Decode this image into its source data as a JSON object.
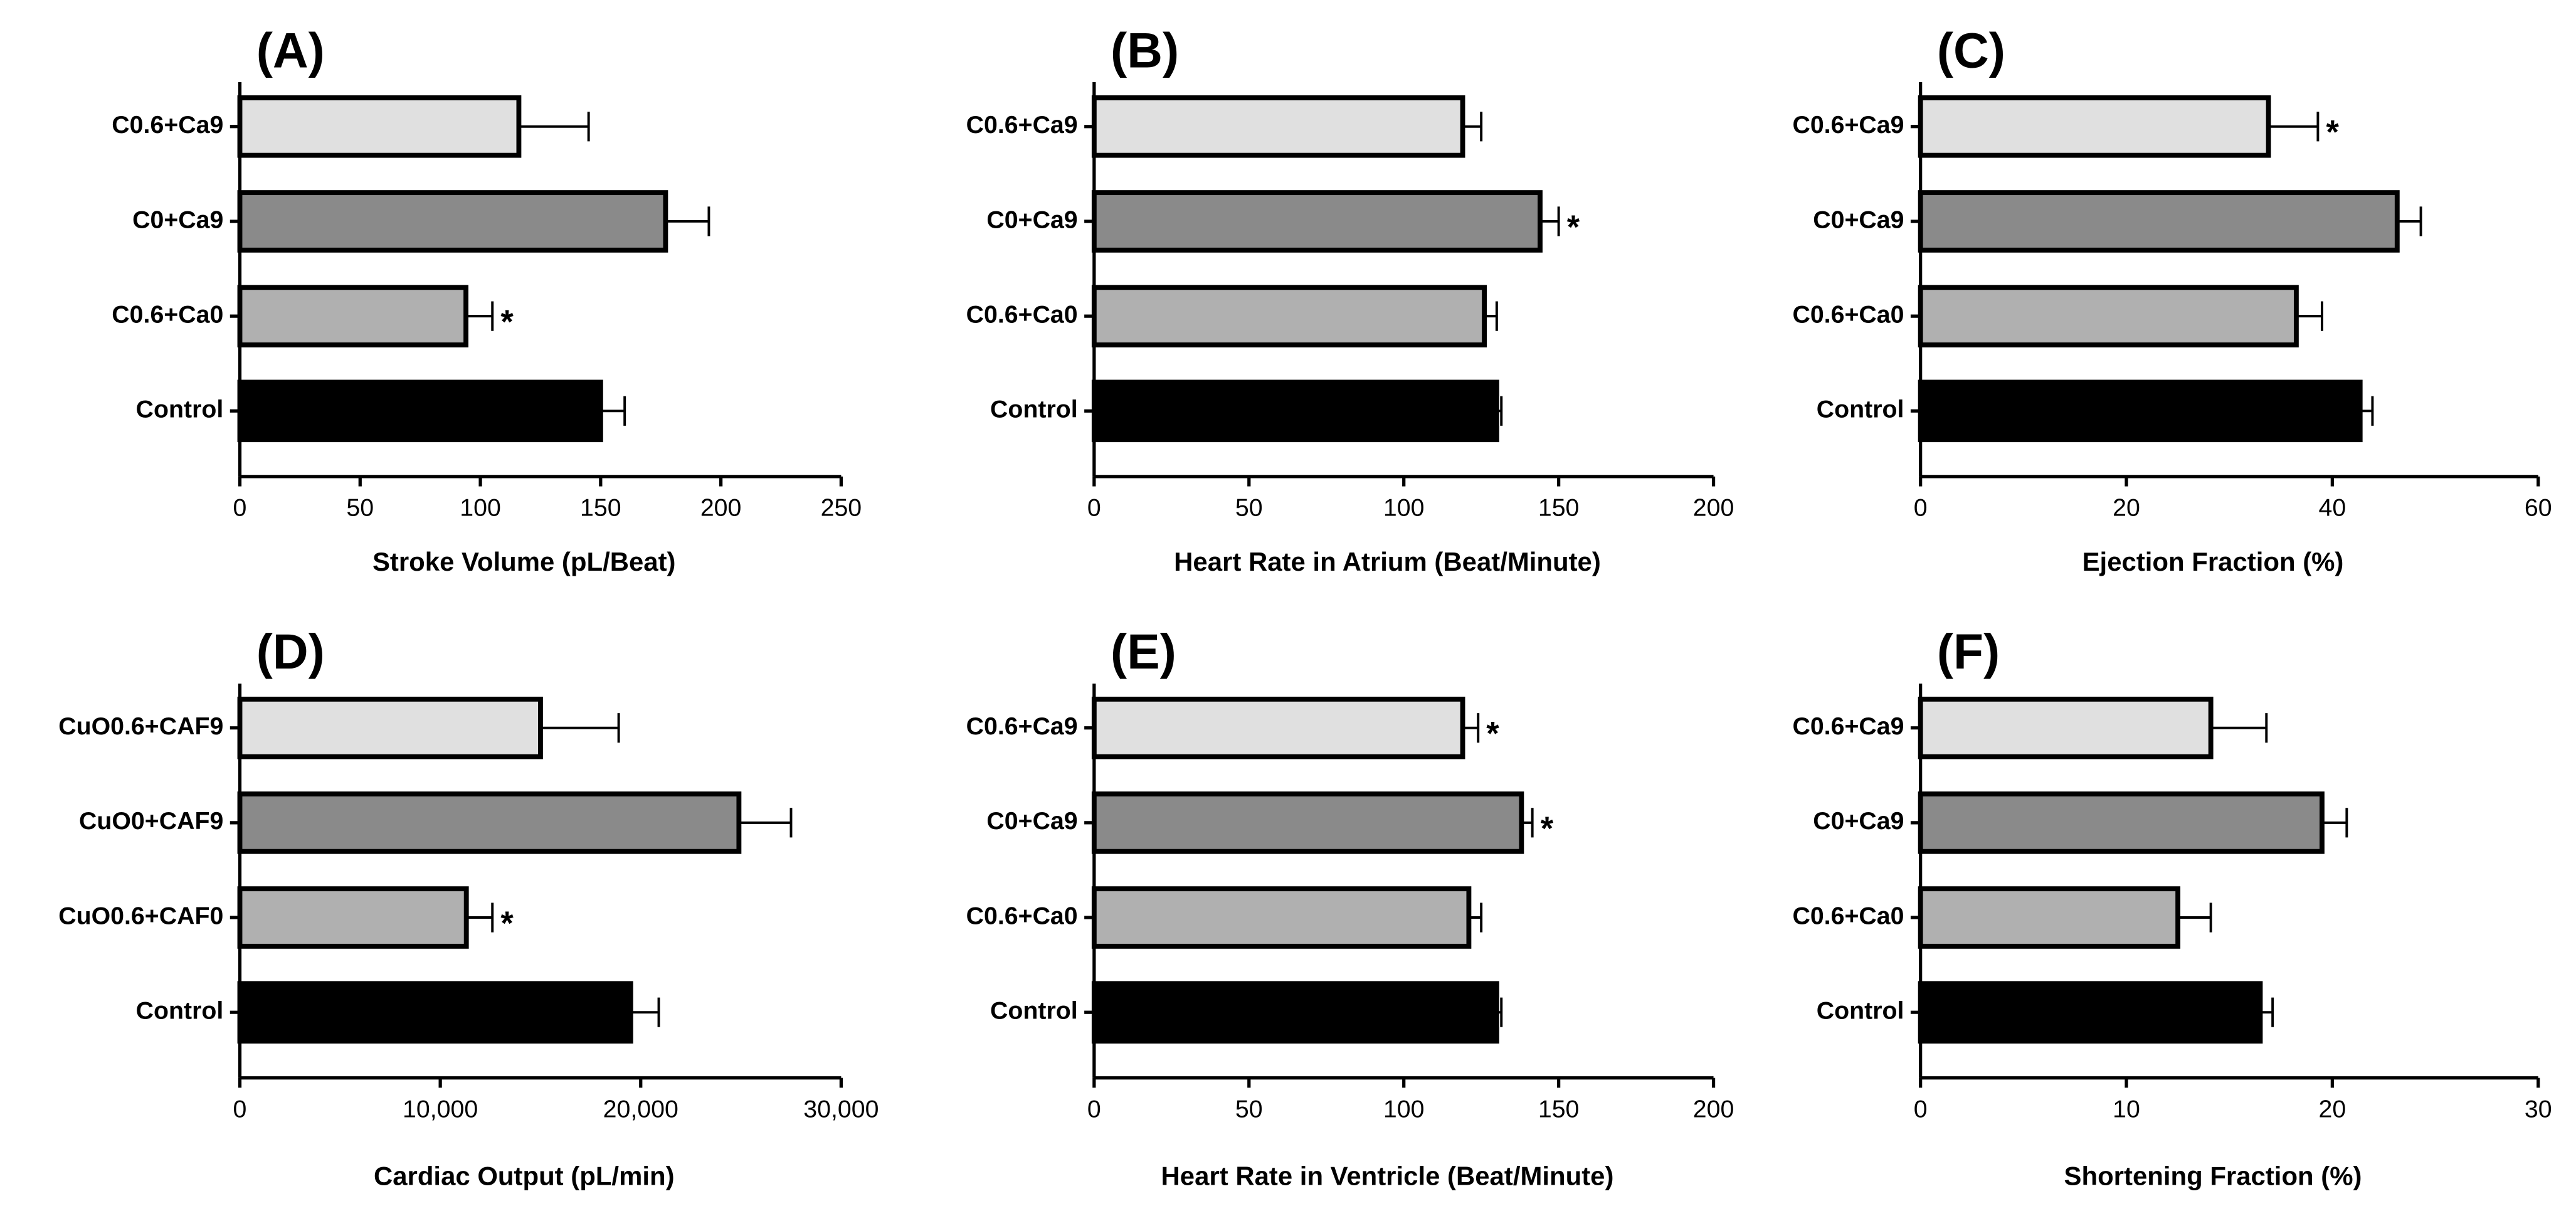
{
  "chart_data": [
    {
      "type": "bar",
      "orientation": "horizontal",
      "title": "(A)",
      "xlabel": "Stroke Volume (pL/Beat)",
      "categories": [
        "C0.6+Ca9",
        "C0+Ca9",
        "C0.6+Ca0",
        "Control"
      ],
      "values": [
        116,
        177,
        94,
        150
      ],
      "errors": [
        29,
        18,
        11,
        10
      ],
      "colors": [
        "#e0e0e0",
        "#8a8a8a",
        "#b0b0b0",
        "#000000"
      ],
      "xlim": [
        0,
        250
      ],
      "xticks": [
        0,
        50,
        100,
        150,
        200,
        250
      ],
      "annotations": [
        {
          "text": "*",
          "category": "C0.6+Ca0"
        }
      ]
    },
    {
      "type": "bar",
      "orientation": "horizontal",
      "title": "(B)",
      "xlabel": "Heart Rate in Atrium (Beat/Minute)",
      "categories": [
        "C0.6+Ca9",
        "C0+Ca9",
        "C0.6+Ca0",
        "Control"
      ],
      "values": [
        119,
        144,
        126,
        130
      ],
      "errors": [
        6,
        6,
        4,
        1.5
      ],
      "colors": [
        "#e0e0e0",
        "#8a8a8a",
        "#b0b0b0",
        "#000000"
      ],
      "xlim": [
        0,
        200
      ],
      "xticks": [
        0,
        50,
        100,
        150,
        200
      ],
      "annotations": [
        {
          "text": "*",
          "category": "C0+Ca9"
        }
      ]
    },
    {
      "type": "bar",
      "orientation": "horizontal",
      "title": "(C)",
      "xlabel": "Ejection Fraction (%)",
      "categories": [
        "C0.6+Ca9",
        "C0+Ca9",
        "C0.6+Ca0",
        "Control"
      ],
      "values": [
        33.8,
        46.3,
        36.5,
        42.7
      ],
      "errors": [
        4.8,
        2.3,
        2.5,
        1.2
      ],
      "colors": [
        "#e0e0e0",
        "#8a8a8a",
        "#b0b0b0",
        "#000000"
      ],
      "xlim": [
        0,
        60
      ],
      "xticks": [
        0,
        20,
        40,
        60
      ],
      "annotations": [
        {
          "text": "*",
          "category": "C0.6+Ca9"
        }
      ]
    },
    {
      "type": "bar",
      "orientation": "horizontal",
      "title": "(D)",
      "xlabel": "Cardiac Output (pL/min)",
      "categories": [
        "CuO0.6+CAF9",
        "CuO0+CAF9",
        "CuO0.6+CAF0",
        "Control"
      ],
      "values": [
        15000,
        24900,
        11300,
        19500
      ],
      "errors": [
        3900,
        2600,
        1300,
        1400
      ],
      "colors": [
        "#e0e0e0",
        "#8a8a8a",
        "#b0b0b0",
        "#000000"
      ],
      "xlim": [
        0,
        30000
      ],
      "xticks": [
        0,
        {
          "value": 10000,
          "label": "10,000"
        },
        {
          "value": 20000,
          "label": "20,000"
        },
        {
          "value": 30000,
          "label": "30,000"
        }
      ],
      "annotations": [
        {
          "text": "*",
          "category": "CuO0.6+CAF0"
        }
      ]
    },
    {
      "type": "bar",
      "orientation": "horizontal",
      "title": "(E)",
      "xlabel": "Heart Rate in Ventricle (Beat/Minute)",
      "categories": [
        "C0.6+Ca9",
        "C0+Ca9",
        "C0.6+Ca0",
        "Control"
      ],
      "values": [
        119,
        138,
        121,
        130
      ],
      "errors": [
        5,
        3.5,
        4,
        1.5
      ],
      "colors": [
        "#e0e0e0",
        "#8a8a8a",
        "#b0b0b0",
        "#000000"
      ],
      "xlim": [
        0,
        200
      ],
      "xticks": [
        0,
        50,
        100,
        150,
        200
      ],
      "annotations": [
        {
          "text": "*",
          "category": "C0.6+Ca9"
        },
        {
          "text": "*",
          "category": "C0+Ca9"
        }
      ]
    },
    {
      "type": "bar",
      "orientation": "horizontal",
      "title": "(F)",
      "xlabel": "Shortening Fraction (%)",
      "categories": [
        "C0.6+Ca9",
        "C0+Ca9",
        "C0.6+Ca0",
        "Control"
      ],
      "values": [
        14.1,
        19.5,
        12.5,
        16.5
      ],
      "errors": [
        2.7,
        1.2,
        1.6,
        0.6
      ],
      "colors": [
        "#e0e0e0",
        "#8a8a8a",
        "#b0b0b0",
        "#000000"
      ],
      "xlim": [
        0,
        30
      ],
      "xticks": [
        0,
        10,
        20,
        30
      ],
      "annotations": []
    }
  ]
}
